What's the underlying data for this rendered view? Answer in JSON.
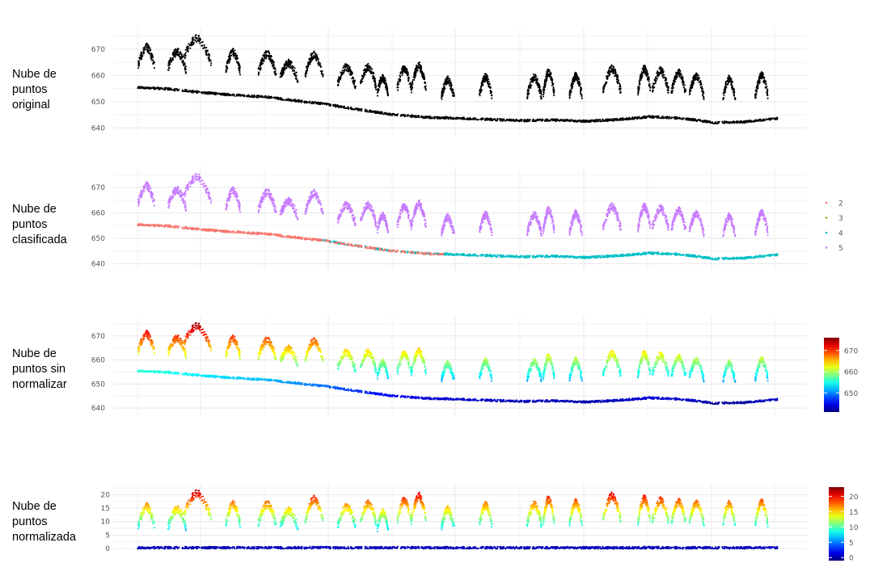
{
  "chart_data": [
    {
      "type": "scatter",
      "label": "Nube de\npuntos\noriginal",
      "color_mode": "single",
      "color": "#000000",
      "y_ticks": [
        640,
        650,
        660,
        670
      ],
      "ylim": [
        637,
        678
      ],
      "grid": true
    },
    {
      "type": "scatter",
      "label": "Nube de\npuntos\nclasificada",
      "color_mode": "class",
      "legend": [
        {
          "label": "2",
          "color": "#F8766D"
        },
        {
          "label": "3",
          "color": "#7CAE00"
        },
        {
          "label": "4",
          "color": "#00BFC4"
        },
        {
          "label": "5",
          "color": "#C77CFF"
        }
      ],
      "y_ticks": [
        640,
        650,
        660,
        670
      ],
      "ylim": [
        637,
        678
      ],
      "grid": true
    },
    {
      "type": "scatter",
      "label": "Nube de\npuntos sin\nnormalizar",
      "color_mode": "gradient",
      "colorbar_ticks": [
        650,
        660,
        670
      ],
      "colorbar_range": [
        641,
        676
      ],
      "y_ticks": [
        640,
        650,
        660,
        670
      ],
      "ylim": [
        637,
        678
      ],
      "grid": true
    },
    {
      "type": "scatter",
      "label": "Nube de\npuntos\nnormalizada",
      "color_mode": "gradient",
      "colorbar_ticks": [
        0,
        5,
        10,
        15,
        20
      ],
      "colorbar_range": [
        -1,
        23
      ],
      "y_ticks": [
        0,
        5,
        10,
        15,
        20
      ],
      "ylim": [
        -1.5,
        24
      ],
      "grid": true
    }
  ],
  "profile": {
    "ground": [
      [
        0,
        655.5
      ],
      [
        0.1,
        654.8
      ],
      [
        0.2,
        653.5
      ],
      [
        0.3,
        652.5
      ],
      [
        0.4,
        651.8
      ],
      [
        0.5,
        650.3
      ],
      [
        0.6,
        648.8
      ],
      [
        0.7,
        646.8
      ],
      [
        0.8,
        645.0
      ],
      [
        0.9,
        644.0
      ],
      [
        1.0,
        643.7
      ],
      [
        1.1,
        643.2
      ],
      [
        1.2,
        642.8
      ],
      [
        1.3,
        643.0
      ],
      [
        1.4,
        642.5
      ],
      [
        1.5,
        643.2
      ],
      [
        1.6,
        644.2
      ],
      [
        1.7,
        643.7
      ],
      [
        1.8,
        642.0
      ],
      [
        1.9,
        642.3
      ],
      [
        2.0,
        643.6
      ]
    ],
    "canopy": [
      {
        "x": 0.05,
        "w": 0.09,
        "h": 15.5
      },
      {
        "x": 0.22,
        "w": 0.1,
        "h": 14.5
      },
      {
        "x": 0.33,
        "w": 0.16,
        "h": 20.5
      },
      {
        "x": 0.53,
        "w": 0.08,
        "h": 16.5
      },
      {
        "x": 0.72,
        "w": 0.1,
        "h": 16.5
      },
      {
        "x": 0.84,
        "w": 0.1,
        "h": 14.0
      },
      {
        "x": 0.98,
        "w": 0.1,
        "h": 18.5
      },
      {
        "x": 1.16,
        "w": 0.1,
        "h": 15.5
      },
      {
        "x": 1.28,
        "w": 0.09,
        "h": 17.0
      },
      {
        "x": 1.36,
        "w": 0.06,
        "h": 13.5
      },
      {
        "x": 1.48,
        "w": 0.08,
        "h": 18.0
      },
      {
        "x": 1.56,
        "w": 0.08,
        "h": 19.5
      },
      {
        "x": 1.72,
        "w": 0.07,
        "h": 14.5
      },
      {
        "x": 1.93,
        "w": 0.07,
        "h": 16.0
      },
      {
        "x": 2.2,
        "w": 0.08,
        "h": 16.5
      },
      {
        "x": 2.28,
        "w": 0.06,
        "h": 18.5
      },
      {
        "x": 2.43,
        "w": 0.07,
        "h": 17.0
      },
      {
        "x": 2.63,
        "w": 0.1,
        "h": 19.5
      },
      {
        "x": 2.81,
        "w": 0.07,
        "h": 18.5
      },
      {
        "x": 2.9,
        "w": 0.09,
        "h": 18.0
      },
      {
        "x": 3.0,
        "w": 0.08,
        "h": 17.5
      },
      {
        "x": 3.1,
        "w": 0.08,
        "h": 17.0
      },
      {
        "x": 3.28,
        "w": 0.07,
        "h": 16.5
      },
      {
        "x": 3.46,
        "w": 0.07,
        "h": 17.0
      }
    ]
  }
}
